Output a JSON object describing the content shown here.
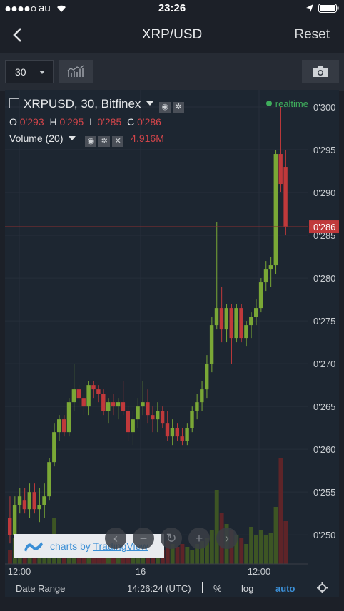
{
  "status": {
    "carrier": "au",
    "time": "23:26"
  },
  "nav": {
    "title": "XRP/USD",
    "reset": "Reset"
  },
  "toolbar": {
    "interval": "30"
  },
  "legend": {
    "title": "XRPUSD, 30, Bitfinex",
    "o_label": "O",
    "o_val": "0'293",
    "h_label": "H",
    "h_val": "0'295",
    "l_label": "L",
    "l_val": "0'285",
    "c_label": "C",
    "c_val": "0'286",
    "volume_label": "Volume (20)",
    "volume_val": "4.916M",
    "realtime": "realtime"
  },
  "watermark": {
    "prefix": "charts by",
    "brand": "TradingView"
  },
  "bottom": {
    "date_range": "Date Range",
    "clock": "14:26:24 (UTC)",
    "percent": "%",
    "log": "log",
    "auto": "auto"
  },
  "colors": {
    "up": "#7aa836",
    "down": "#c0393b",
    "accent": "#3b8fd6",
    "background": "#1d2631"
  },
  "chart_data": {
    "type": "candlestick",
    "symbol": "XRPUSD",
    "interval": "30",
    "exchange": "Bitfinex",
    "last_price": "0'286",
    "y_ticks": [
      "0'300",
      "0'295",
      "0'290",
      "0'285",
      "0'280",
      "0'275",
      "0'270",
      "0'265",
      "0'260",
      "0'255",
      "0'250"
    ],
    "x_ticks": [
      "12:00",
      "16",
      "12:00"
    ],
    "ylim": [
      0.2466,
      0.302
    ],
    "candles": [
      [
        0.252,
        0.2545,
        0.249,
        0.25
      ],
      [
        0.25,
        0.2545,
        0.2495,
        0.2535
      ],
      [
        0.2535,
        0.2555,
        0.2525,
        0.2545
      ],
      [
        0.254,
        0.2555,
        0.2525,
        0.253
      ],
      [
        0.253,
        0.256,
        0.252,
        0.255
      ],
      [
        0.255,
        0.256,
        0.2525,
        0.253
      ],
      [
        0.253,
        0.2555,
        0.2515,
        0.2535
      ],
      [
        0.2535,
        0.256,
        0.252,
        0.2545
      ],
      [
        0.2545,
        0.259,
        0.254,
        0.2585
      ],
      [
        0.2585,
        0.263,
        0.258,
        0.262
      ],
      [
        0.262,
        0.264,
        0.261,
        0.2635
      ],
      [
        0.2635,
        0.264,
        0.2615,
        0.262
      ],
      [
        0.262,
        0.266,
        0.2615,
        0.2655
      ],
      [
        0.2655,
        0.27,
        0.2645,
        0.267
      ],
      [
        0.267,
        0.2675,
        0.265,
        0.266
      ],
      [
        0.266,
        0.2665,
        0.264,
        0.265
      ],
      [
        0.265,
        0.268,
        0.264,
        0.2675
      ],
      [
        0.2675,
        0.268,
        0.266,
        0.267
      ],
      [
        0.267,
        0.2675,
        0.2655,
        0.2665
      ],
      [
        0.2665,
        0.267,
        0.264,
        0.2645
      ],
      [
        0.2645,
        0.266,
        0.263,
        0.2655
      ],
      [
        0.2655,
        0.2665,
        0.264,
        0.265
      ],
      [
        0.265,
        0.266,
        0.2635,
        0.2655
      ],
      [
        0.2655,
        0.268,
        0.264,
        0.2645
      ],
      [
        0.2645,
        0.265,
        0.261,
        0.262
      ],
      [
        0.262,
        0.2645,
        0.2605,
        0.2635
      ],
      [
        0.2635,
        0.266,
        0.2625,
        0.265
      ],
      [
        0.265,
        0.268,
        0.264,
        0.2655
      ],
      [
        0.2655,
        0.267,
        0.263,
        0.264
      ],
      [
        0.264,
        0.265,
        0.262,
        0.2635
      ],
      [
        0.2635,
        0.2655,
        0.262,
        0.2645
      ],
      [
        0.2645,
        0.265,
        0.2625,
        0.263
      ],
      [
        0.263,
        0.2645,
        0.261,
        0.2615
      ],
      [
        0.2615,
        0.2635,
        0.2605,
        0.2625
      ],
      [
        0.2625,
        0.263,
        0.261,
        0.2615
      ],
      [
        0.2615,
        0.2625,
        0.2605,
        0.261
      ],
      [
        0.261,
        0.263,
        0.2605,
        0.2625
      ],
      [
        0.2625,
        0.265,
        0.262,
        0.2645
      ],
      [
        0.2645,
        0.2665,
        0.2635,
        0.2655
      ],
      [
        0.2655,
        0.268,
        0.2645,
        0.267
      ],
      [
        0.267,
        0.271,
        0.266,
        0.27
      ],
      [
        0.27,
        0.2755,
        0.269,
        0.2745
      ],
      [
        0.2745,
        0.2865,
        0.274,
        0.2765
      ],
      [
        0.2765,
        0.279,
        0.2725,
        0.274
      ],
      [
        0.274,
        0.277,
        0.2725,
        0.2765
      ],
      [
        0.2765,
        0.277,
        0.27,
        0.273
      ],
      [
        0.273,
        0.277,
        0.2725,
        0.2765
      ],
      [
        0.2765,
        0.277,
        0.2725,
        0.273
      ],
      [
        0.273,
        0.275,
        0.272,
        0.2745
      ],
      [
        0.2745,
        0.276,
        0.273,
        0.2755
      ],
      [
        0.2755,
        0.2775,
        0.2745,
        0.2765
      ],
      [
        0.2765,
        0.28,
        0.276,
        0.2795
      ],
      [
        0.2795,
        0.282,
        0.2785,
        0.281
      ],
      [
        0.281,
        0.2825,
        0.279,
        0.2815
      ],
      [
        0.2815,
        0.295,
        0.2805,
        0.2945
      ],
      [
        0.2945,
        0.3,
        0.29,
        0.291
      ],
      [
        0.293,
        0.295,
        0.285,
        0.286
      ]
    ],
    "volumes": [
      0.5,
      0.9,
      0.6,
      0.7,
      0.8,
      0.6,
      0.7,
      0.6,
      0.9,
      1.6,
      0.8,
      0.9,
      0.7,
      0.6,
      0.5,
      0.6,
      0.7,
      0.5,
      0.6,
      0.5,
      0.8,
      0.6,
      0.5,
      0.6,
      0.7,
      0.6,
      0.5,
      0.6,
      0.9,
      0.7,
      0.6,
      0.5,
      0.8,
      0.7,
      0.6,
      0.7,
      0.6,
      0.5,
      0.7,
      0.8,
      0.9,
      1.2,
      2.6,
      1.8,
      1.4,
      1.2,
      1.0,
      0.9,
      0.7,
      1.3,
      1.0,
      1.2,
      1.0,
      1.1,
      2.0,
      3.7,
      1.5
    ]
  }
}
